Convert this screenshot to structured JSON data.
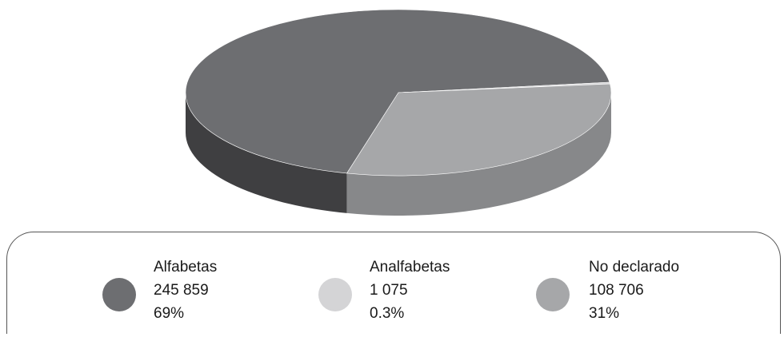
{
  "chart_data": {
    "type": "pie",
    "style": "3d",
    "slices": [
      {
        "label": "Alfabetas",
        "value": 245859,
        "value_text": "245 859",
        "percent_text": "69%",
        "color": "#6d6e71",
        "side_color": "#3f3f41"
      },
      {
        "label": "Analfabetas",
        "value": 1075,
        "value_text": "1 075",
        "percent_text": "0.3%",
        "color": "#d4d4d6",
        "side_color": "#bfbfc1"
      },
      {
        "label": "No declarado",
        "value": 108706,
        "value_text": "108 706",
        "percent_text": "31%",
        "color": "#a6a7a9",
        "side_color": "#87888a"
      }
    ],
    "legend_position": "bottom"
  }
}
